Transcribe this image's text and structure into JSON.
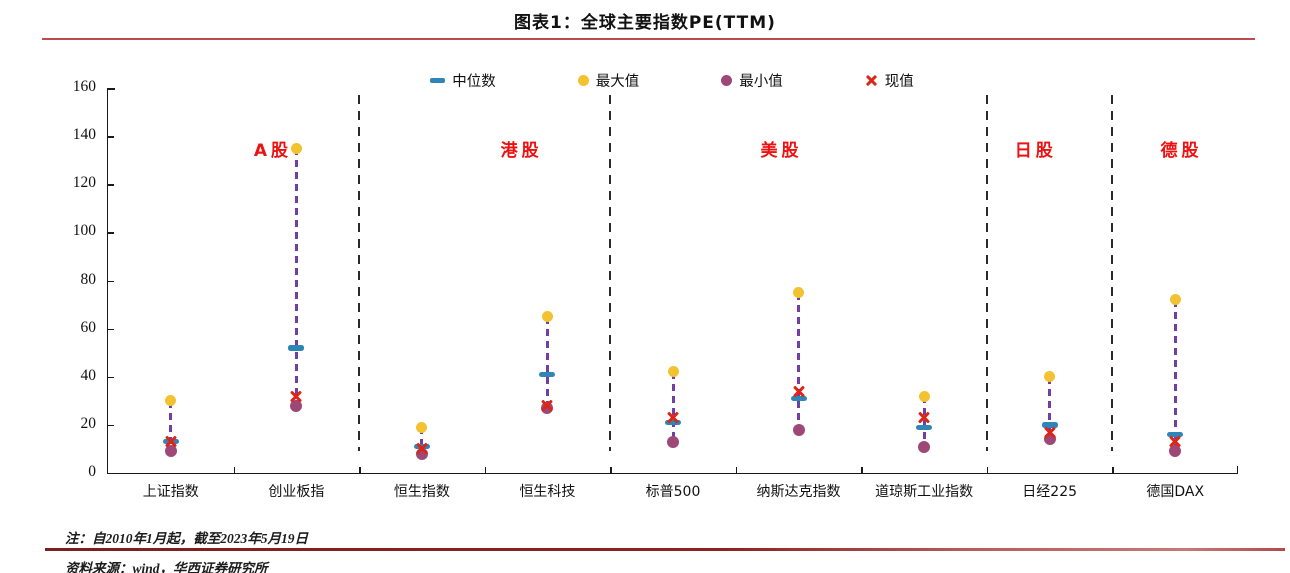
{
  "page": {
    "title": "图表1：全球主要指数PE(TTM)",
    "note": "注：自2010年1月起，截至2023年5月19日",
    "source": "资料来源：wind，华西证券研究所"
  },
  "colors": {
    "median": "#2e86b8",
    "max": "#f2c230",
    "min": "#9e4877",
    "current": "#dd2518",
    "connector": "#7040a0",
    "group_label": "#ee1111",
    "rule_top": "#bf4c4c",
    "rule_bottom": "#7e1e1e",
    "axis": "#1a1a1a"
  },
  "chart_data": {
    "type": "scatter",
    "subtype": "high-low-range",
    "title": "图表1：全球主要指数PE(TTM)",
    "xlabel": "",
    "ylabel": "",
    "ylim": [
      0,
      160
    ],
    "ytick_step": 20,
    "grid": false,
    "legend_position": "top-center",
    "categories": [
      "上证指数",
      "创业板指",
      "恒生指数",
      "恒生科技",
      "标普500",
      "纳斯达克指数",
      "道琼斯工业指数",
      "日经225",
      "德国DAX"
    ],
    "series": [
      {
        "name": "中位数",
        "role": "median",
        "marker": "dash",
        "color": "#2e86b8",
        "values": [
          13,
          52,
          11,
          41,
          21,
          31,
          19,
          20,
          16
        ]
      },
      {
        "name": "最大值",
        "role": "max",
        "marker": "circle",
        "color": "#f2c230",
        "values": [
          30,
          135,
          19,
          65,
          42,
          75,
          32,
          40,
          72
        ]
      },
      {
        "name": "最小值",
        "role": "min",
        "marker": "circle",
        "color": "#9e4877",
        "values": [
          9,
          28,
          8,
          27,
          13,
          18,
          11,
          14,
          9
        ]
      },
      {
        "name": "现值",
        "role": "current",
        "marker": "x",
        "color": "#dd2518",
        "values": [
          13,
          32,
          10,
          28,
          23,
          34,
          23,
          17,
          13
        ]
      }
    ],
    "groups": [
      {
        "label": "A股",
        "from": 0,
        "to": 1,
        "label_at": 0.146
      },
      {
        "label": "港股",
        "from": 2,
        "to": 3,
        "label_at": 0.366
      },
      {
        "label": "美股",
        "from": 4,
        "to": 6,
        "label_at": 0.596
      },
      {
        "label": "日股",
        "from": 7,
        "to": 7,
        "label_at": 0.821
      },
      {
        "label": "德股",
        "from": 8,
        "to": 8,
        "label_at": 0.95
      }
    ]
  }
}
